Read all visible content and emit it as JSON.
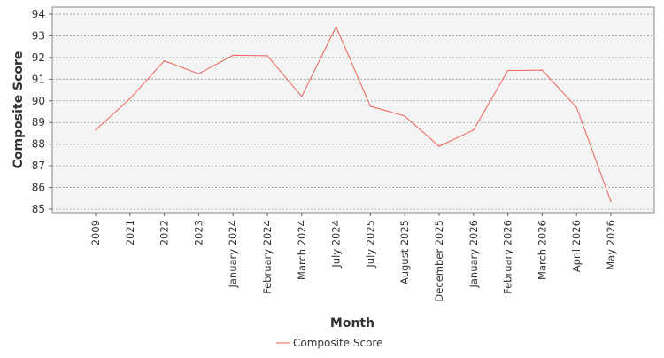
{
  "chart_data": {
    "type": "line",
    "title": "",
    "xlabel": "Month",
    "ylabel": "Composite Score",
    "ylim": [
      84.9,
      94.2
    ],
    "yticks": [
      85,
      86,
      87,
      88,
      89,
      90,
      91,
      92,
      93,
      94
    ],
    "grid": true,
    "legend_position": "bottom-center",
    "categories": [
      "2009",
      "2021",
      "2022",
      "2023",
      "January 2024",
      "February 2024",
      "March 2024",
      "July 2024",
      "July 2025",
      "August 2025",
      "December 2025",
      "January 2026",
      "February 2026",
      "March 2026",
      "April 2026",
      "May 2026"
    ],
    "series": [
      {
        "name": "Composite Score",
        "color": "#f0605a",
        "values": [
          88.65,
          90.1,
          91.85,
          91.25,
          92.1,
          92.08,
          90.2,
          93.42,
          89.75,
          89.3,
          87.9,
          88.65,
          91.4,
          91.42,
          89.7,
          85.35
        ]
      }
    ]
  }
}
